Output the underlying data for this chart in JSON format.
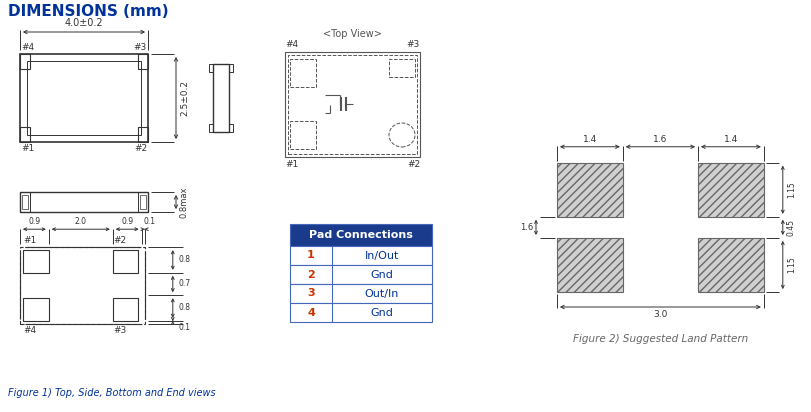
{
  "title": "DIMENSIONS (mm)",
  "title_color": "#003399",
  "background": "#ffffff",
  "figure_caption": "Figure 1) Top, Side, Bottom and End views",
  "figure2_caption": "Figure 2) Suggested Land Pattern",
  "pad_connections": {
    "header": "Pad Connections",
    "header_bg": "#1a3a8c",
    "header_fg": "#ffffff",
    "rows": [
      [
        "1",
        "In/Out"
      ],
      [
        "2",
        "Gnd"
      ],
      [
        "3",
        "Out/In"
      ],
      [
        "4",
        "Gnd"
      ]
    ],
    "row_fg": "#cc3300",
    "val_fg": "#003399"
  },
  "dim_color": "#333333",
  "line_color": "#333333",
  "top_view_label": "<Top View>"
}
